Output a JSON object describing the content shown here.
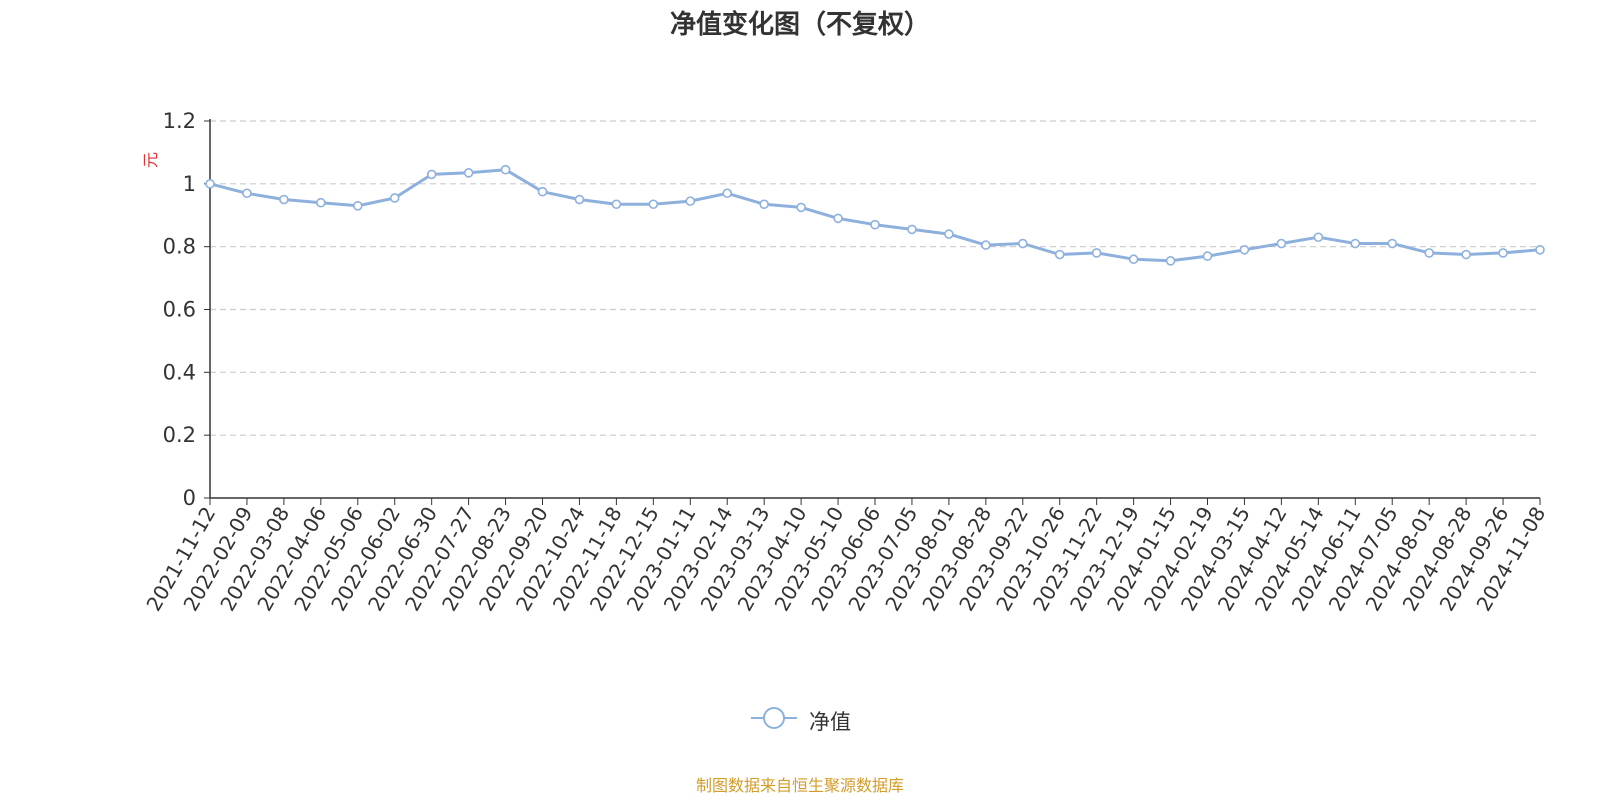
{
  "chart_data": {
    "type": "line",
    "title": "净值变化图（不复权）",
    "ylabel": "元",
    "xlabel": "",
    "ylim": [
      0,
      1.2
    ],
    "yticks": [
      "0",
      "0.2",
      "0.4",
      "0.6",
      "0.8",
      "1",
      "1.2"
    ],
    "grid": true,
    "legend_position": "bottom",
    "source_note": "制图数据来自恒生聚源数据库",
    "colors": {
      "line": "#8eb0dc",
      "grid": "#cccccc",
      "axis": "#333333",
      "ylabel": "#e03030",
      "source": "#d39c2b"
    },
    "x": [
      "2021-11-12",
      "2022-02-09",
      "2022-03-08",
      "2022-04-06",
      "2022-05-06",
      "2022-06-02",
      "2022-06-30",
      "2022-07-27",
      "2022-08-23",
      "2022-09-20",
      "2022-10-24",
      "2022-11-18",
      "2022-12-15",
      "2023-01-11",
      "2023-02-14",
      "2023-03-13",
      "2023-04-10",
      "2023-05-10",
      "2023-06-06",
      "2023-07-05",
      "2023-08-01",
      "2023-08-28",
      "2023-09-22",
      "2023-10-26",
      "2023-11-22",
      "2023-12-19",
      "2024-01-15",
      "2024-02-19",
      "2024-03-15",
      "2024-04-12",
      "2024-05-14",
      "2024-06-11",
      "2024-07-05",
      "2024-08-01",
      "2024-08-28",
      "2024-09-26",
      "2024-11-08"
    ],
    "series": [
      {
        "name": "净值",
        "values": [
          1.0,
          0.97,
          0.95,
          0.94,
          0.93,
          0.955,
          1.03,
          1.035,
          1.045,
          0.975,
          0.95,
          0.935,
          0.935,
          0.945,
          0.97,
          0.935,
          0.925,
          0.89,
          0.87,
          0.855,
          0.84,
          0.805,
          0.81,
          0.775,
          0.78,
          0.76,
          0.755,
          0.77,
          0.79,
          0.81,
          0.83,
          0.81,
          0.81,
          0.78,
          0.775,
          0.78,
          0.79
        ]
      }
    ]
  }
}
